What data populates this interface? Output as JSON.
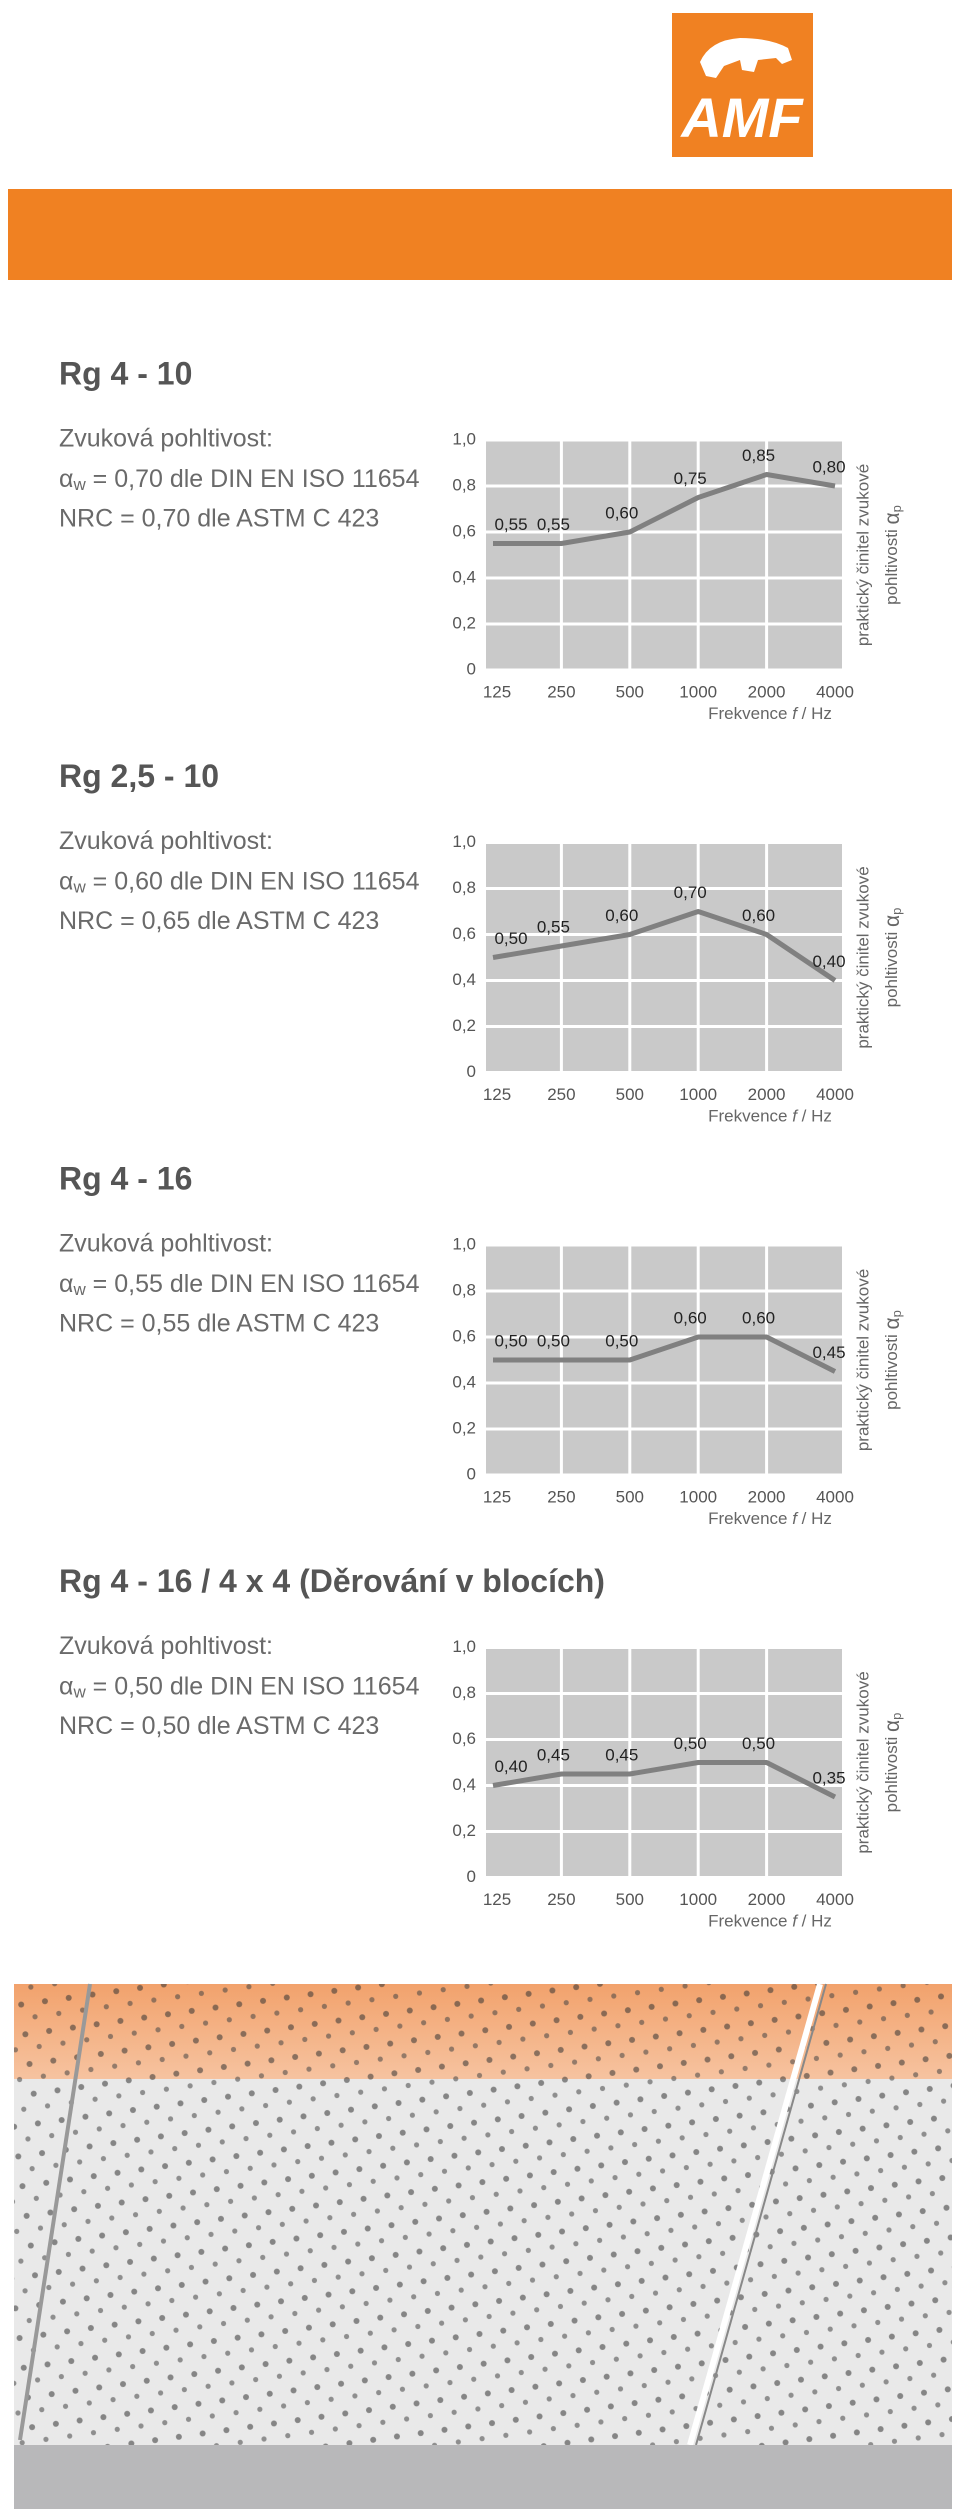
{
  "logo": "AMF",
  "chart_data": [
    {
      "type": "line",
      "title": "Rg 4 - 10",
      "heading": "Zvuková pohltivost:",
      "rating": {
        "symbol": "α",
        "sub": "w",
        "text": " = 0,70 dle DIN EN ISO 11654"
      },
      "nrc": "NRC = 0,70 dle ASTM C 423",
      "categories": [
        "125",
        "250",
        "500",
        "1000",
        "2000",
        "4000"
      ],
      "values": [
        0.55,
        0.55,
        0.6,
        0.75,
        0.85,
        0.8
      ],
      "value_labels": [
        "0,55",
        "0,55",
        "0,60",
        "0,75",
        "0,85",
        "0,80"
      ],
      "ylim": [
        0,
        1
      ],
      "yticks": [
        0,
        {
          "value": 0.2,
          "label": "0,2"
        },
        {
          "value": 0.4,
          "label": "0,4"
        },
        {
          "value": 0.6,
          "label": "0,6"
        },
        {
          "value": 0.8,
          "label": "0,8"
        },
        {
          "value": 1,
          "label": "1,0"
        }
      ],
      "x_label": {
        "text": "Frekvence ",
        "symbol": "f",
        "unit": " / Hz"
      },
      "y_label": {
        "line1": "praktický činitel zvukové",
        "line2": "pohltivosti ",
        "symbol": "α",
        "sub": "p"
      },
      "color": "#808080",
      "grid": true
    },
    {
      "type": "line",
      "title": "Rg 2,5 - 10",
      "heading": "Zvuková pohltivost:",
      "rating": {
        "symbol": "α",
        "sub": "w",
        "text": " = 0,60 dle DIN EN ISO 11654"
      },
      "nrc": "NRC = 0,65 dle ASTM C 423",
      "categories": [
        "125",
        "250",
        "500",
        "1000",
        "2000",
        "4000"
      ],
      "values": [
        0.5,
        0.55,
        0.6,
        0.7,
        0.6,
        0.4
      ],
      "value_labels": [
        "0,50",
        "0,55",
        "0,60",
        "0,70",
        "0,60",
        "0,40"
      ],
      "ylim": [
        0,
        1
      ],
      "yticks": [
        0,
        {
          "value": 0.2,
          "label": "0,2"
        },
        {
          "value": 0.4,
          "label": "0,4"
        },
        {
          "value": 0.6,
          "label": "0,6"
        },
        {
          "value": 0.8,
          "label": "0,8"
        },
        {
          "value": 1,
          "label": "1,0"
        }
      ],
      "x_label": {
        "text": "Frekvence ",
        "symbol": "f",
        "unit": " / Hz"
      },
      "y_label": {
        "line1": "praktický činitel zvukové",
        "line2": "pohltivosti ",
        "symbol": "α",
        "sub": "p"
      },
      "color": "#808080",
      "grid": true
    },
    {
      "type": "line",
      "title": "Rg 4 - 16",
      "heading": "Zvuková pohltivost:",
      "rating": {
        "symbol": "α",
        "sub": "w",
        "text": " = 0,55 dle DIN EN ISO 11654"
      },
      "nrc": "NRC = 0,55 dle ASTM C 423",
      "categories": [
        "125",
        "250",
        "500",
        "1000",
        "2000",
        "4000"
      ],
      "values": [
        0.5,
        0.5,
        0.5,
        0.6,
        0.6,
        0.45
      ],
      "value_labels": [
        "0,50",
        "0,50",
        "0,50",
        "0,60",
        "0,60",
        "0,45"
      ],
      "ylim": [
        0,
        1
      ],
      "yticks": [
        0,
        {
          "value": 0.2,
          "label": "0,2"
        },
        {
          "value": 0.4,
          "label": "0,4"
        },
        {
          "value": 0.6,
          "label": "0,6"
        },
        {
          "value": 0.8,
          "label": "0,8"
        },
        {
          "value": 1,
          "label": "1,0"
        }
      ],
      "x_label": {
        "text": "Frekvence ",
        "symbol": "f",
        "unit": " / Hz"
      },
      "y_label": {
        "line1": "praktický činitel zvukové",
        "line2": "pohltivosti ",
        "symbol": "α",
        "sub": "p"
      },
      "color": "#808080",
      "grid": true
    },
    {
      "type": "line",
      "title": "Rg 4 - 16 / 4 x 4 (Děrování v blocích)",
      "heading": "Zvuková pohltivost:",
      "rating": {
        "symbol": "α",
        "sub": "w",
        "text": " = 0,50 dle DIN EN ISO 11654"
      },
      "nrc": "NRC = 0,50 dle ASTM C 423",
      "categories": [
        "125",
        "250",
        "500",
        "1000",
        "2000",
        "4000"
      ],
      "values": [
        0.4,
        0.45,
        0.45,
        0.5,
        0.5,
        0.35
      ],
      "value_labels": [
        "0,40",
        "0,45",
        "0,45",
        "0,50",
        "0,50",
        "0,35"
      ],
      "ylim": [
        0,
        1
      ],
      "yticks": [
        0,
        {
          "value": 0.2,
          "label": "0,2"
        },
        {
          "value": 0.4,
          "label": "0,4"
        },
        {
          "value": 0.6,
          "label": "0,6"
        },
        {
          "value": 0.8,
          "label": "0,8"
        },
        {
          "value": 1,
          "label": "1,0"
        }
      ],
      "x_label": {
        "text": "Frekvence ",
        "symbol": "f",
        "unit": " / Hz"
      },
      "y_label": {
        "line1": "praktický činitel zvukové",
        "line2": "pohltivosti ",
        "symbol": "α",
        "sub": "p"
      },
      "color": "#808080",
      "grid": true
    }
  ]
}
